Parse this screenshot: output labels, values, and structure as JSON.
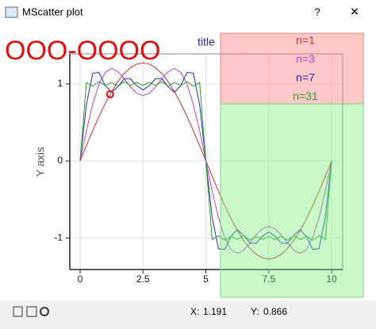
{
  "window": {
    "title": "MScatter plot",
    "help": "?",
    "close": "✕"
  },
  "status": {
    "x_label": "X:",
    "y_label": "Y:"
  },
  "chart_data": {
    "type": "line",
    "title": "title",
    "y_label": "Y axis",
    "overlay_text": "OOO-OOOO",
    "x": [
      0,
      0.25,
      0.5,
      0.75,
      1,
      1.25,
      1.5,
      1.75,
      2,
      2.25,
      2.5,
      2.75,
      3,
      3.25,
      3.5,
      3.75,
      4,
      4.25,
      4.5,
      4.75,
      5,
      5.25,
      5.5,
      5.75,
      6,
      6.25,
      6.5,
      6.75,
      7,
      7.25,
      7.5,
      7.75,
      8,
      8.25,
      8.5,
      8.75,
      9,
      9.25,
      9.5,
      9.75,
      10
    ],
    "series": [
      {
        "name": "n=1",
        "color": "#c83232",
        "values": [
          0,
          0.199,
          0.393,
          0.578,
          0.748,
          0.9,
          1.03,
          1.134,
          1.211,
          1.258,
          1.273,
          1.258,
          1.211,
          1.134,
          1.03,
          0.9,
          0.748,
          0.578,
          0.393,
          0.199,
          0,
          -0.199,
          -0.393,
          -0.578,
          -0.748,
          -0.9,
          -1.03,
          -1.134,
          -1.211,
          -1.258,
          -1.273,
          -1.258,
          -1.211,
          -1.134,
          -1.03,
          -0.9,
          -0.748,
          -0.578,
          -0.393,
          -0.199,
          0
        ]
      },
      {
        "name": "n=3",
        "color": "#c040c8",
        "values": [
          0,
          0.392,
          0.737,
          0.997,
          1.152,
          1.2,
          1.161,
          1.068,
          0.961,
          0.88,
          0.849,
          0.88,
          0.961,
          1.068,
          1.161,
          1.2,
          1.152,
          0.997,
          0.737,
          0.392,
          0,
          -0.392,
          -0.737,
          -0.997,
          -1.152,
          -1.2,
          -1.161,
          -1.068,
          -0.961,
          -0.88,
          -0.849,
          -0.88,
          -0.961,
          -1.068,
          -1.161,
          -1.2,
          -1.152,
          -0.997,
          -0.737,
          -0.392,
          0
        ]
      },
      {
        "name": "n=7",
        "color": "#2828c8",
        "values": [
          0,
          0.733,
          1.14,
          1.148,
          0.979,
          0.893,
          0.963,
          1.068,
          1.068,
          0.977,
          0.922,
          0.977,
          1.068,
          1.068,
          0.963,
          0.893,
          0.979,
          1.148,
          1.14,
          0.733,
          0,
          -0.733,
          -1.14,
          -1.148,
          -0.979,
          -0.893,
          -0.963,
          -1.068,
          -1.068,
          -0.977,
          -0.922,
          -0.977,
          -1.068,
          -1.068,
          -0.963,
          -0.893,
          -0.979,
          -1.148,
          -1.14,
          -0.733,
          0
        ]
      },
      {
        "name": "n=31",
        "color": "#28a028",
        "values": [
          0,
          1.02,
          0.97,
          1.03,
          0.98,
          1.02,
          0.97,
          1.03,
          0.98,
          1.02,
          0.98,
          1.02,
          0.98,
          1.03,
          0.97,
          1.02,
          0.98,
          1.03,
          0.97,
          1.02,
          0,
          -1.02,
          -0.97,
          -1.03,
          -0.98,
          -1.02,
          -0.97,
          -1.03,
          -0.98,
          -1.02,
          -0.98,
          -1.02,
          -0.98,
          -1.03,
          -0.97,
          -1.02,
          -0.98,
          -1.03,
          -0.97,
          -1.02,
          0
        ]
      }
    ],
    "cursor": {
      "x": 1.191,
      "y": 0.866
    },
    "xlim": [
      -0.41,
      10.44
    ],
    "ylim": [
      -1.41,
      1.39
    ],
    "xticks": [
      0,
      2.5,
      5,
      7.5,
      10
    ],
    "yticks": [
      -1,
      0,
      1
    ],
    "grid": true
  }
}
